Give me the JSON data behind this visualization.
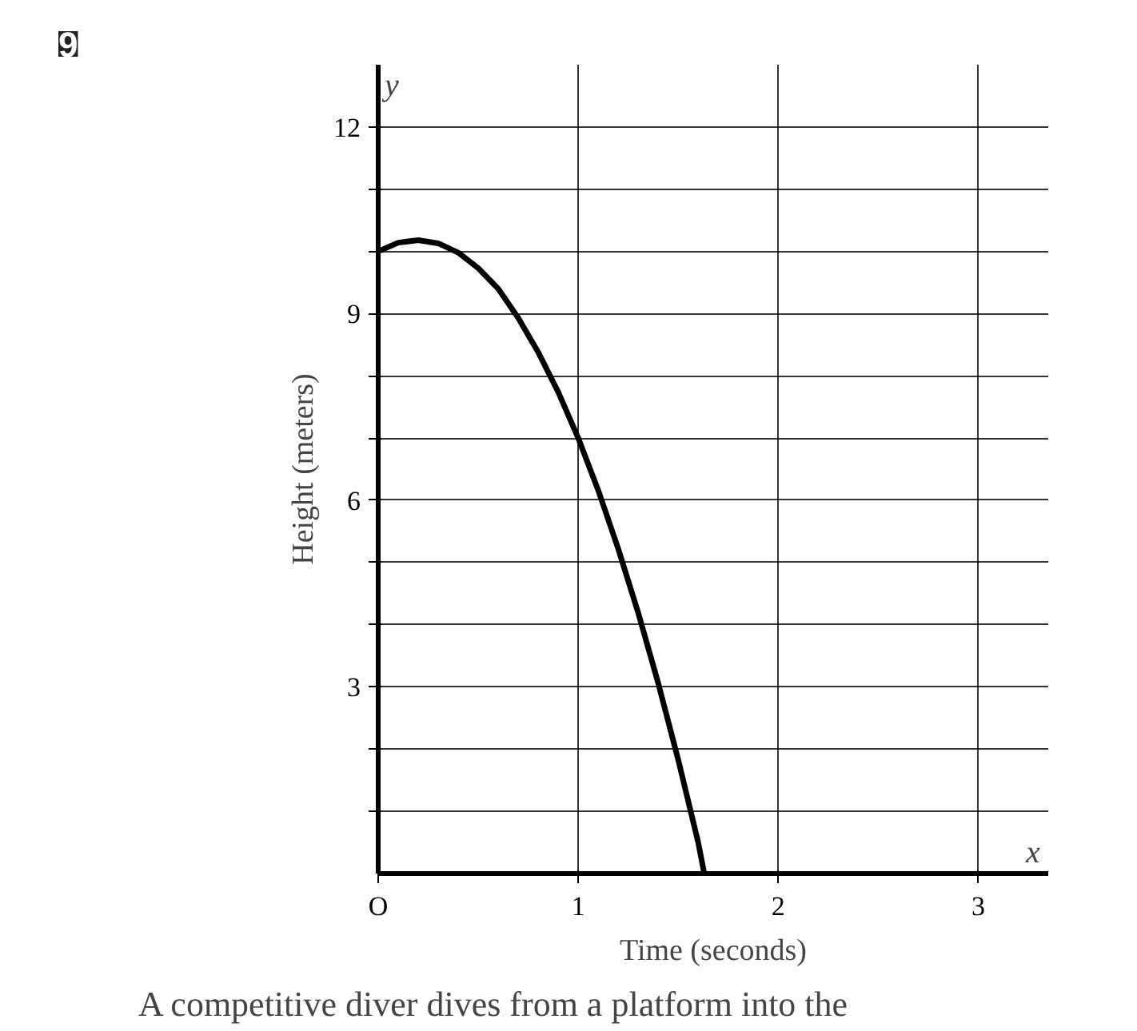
{
  "chart_data": {
    "type": "line",
    "xlabel": "Time (seconds)",
    "ylabel": "Height (meters)",
    "annotations": [
      "9",
      "A competitive diver dives from a platform into the",
      "x",
      "y"
    ],
    "series": [
      {
        "color": "#000000",
        "x": [
          0,
          0.1,
          0.2,
          0.3,
          0.4,
          0.5,
          0.6,
          0.7,
          0.8,
          0.9,
          1.0,
          1.1,
          1.2,
          1.3,
          1.4,
          1.5,
          1.6,
          1.63
        ],
        "values": [
          10,
          10.14,
          10.18,
          10.13,
          9.98,
          9.73,
          9.4,
          8.93,
          8.38,
          7.74,
          7.0,
          6.16,
          5.22,
          4.19,
          3.06,
          1.83,
          0.5,
          0
        ]
      }
    ],
    "xlim": [
      0,
      3.35
    ],
    "ylim": [
      0,
      13
    ],
    "xticks": [
      {
        "value": 0,
        "label": "O"
      },
      1,
      2,
      3
    ],
    "yticks": [
      {
        "value": 1,
        "label": null
      },
      {
        "value": 2,
        "label": null
      },
      3,
      {
        "value": 4,
        "label": null
      },
      {
        "value": 5,
        "label": null
      },
      6,
      {
        "value": 7,
        "label": null
      },
      {
        "value": 8,
        "label": null
      },
      9,
      {
        "value": 10,
        "label": null
      },
      {
        "value": 11,
        "label": null
      },
      12
    ],
    "grid": true,
    "marker": "none",
    "line_style": "solid"
  }
}
